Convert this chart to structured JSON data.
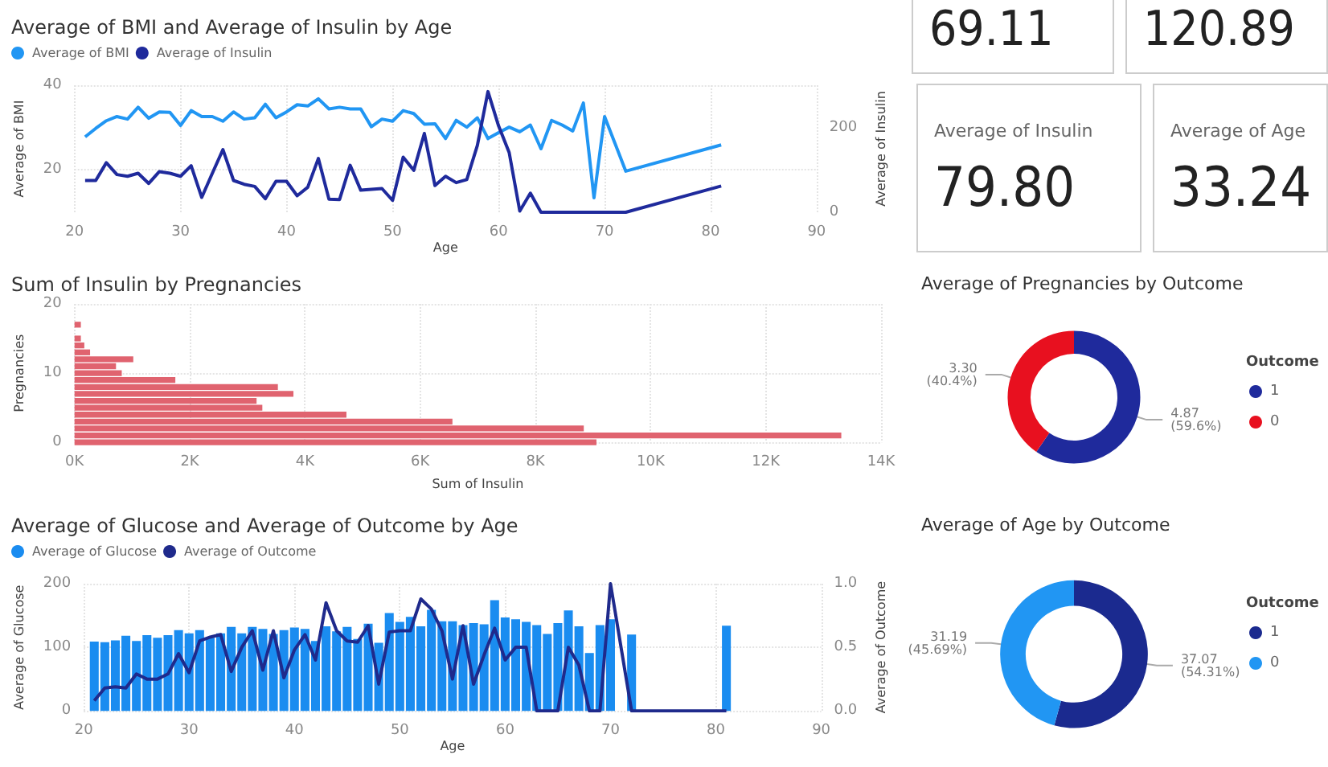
{
  "chart_data": [
    {
      "type": "line",
      "title": "Average of BMI and Average of Insulin by Age",
      "xlabel": "Age",
      "ylabel": "Average of BMI",
      "y2label": "Average of Insulin",
      "xlim": [
        20,
        90
      ],
      "xticks": [
        20,
        30,
        40,
        50,
        60,
        70,
        80,
        90
      ],
      "ylim": [
        10,
        40
      ],
      "yticks": [
        20,
        40
      ],
      "y2lim": [
        0,
        300
      ],
      "y2ticks": [
        0,
        200
      ],
      "grid": true,
      "legend": "top left",
      "marker": "none",
      "line_style": "solid",
      "x": [
        21,
        22,
        23,
        24,
        25,
        26,
        27,
        28,
        29,
        30,
        31,
        32,
        33,
        34,
        35,
        36,
        37,
        38,
        39,
        40,
        41,
        42,
        43,
        44,
        45,
        46,
        47,
        48,
        49,
        50,
        51,
        52,
        53,
        54,
        55,
        56,
        57,
        58,
        59,
        60,
        61,
        62,
        63,
        64,
        65,
        66,
        67,
        68,
        69,
        70,
        72,
        81
      ],
      "series": [
        {
          "name": "Average of BMI",
          "color": "#2196f3",
          "values": [
            27.8,
            29.8,
            31.6,
            32.6,
            32,
            34.8,
            32.2,
            33.7,
            33.6,
            30.5,
            34,
            32.6,
            32.6,
            31.5,
            33.7,
            32,
            32.3,
            35.5,
            32.3,
            33.7,
            35.4,
            35.1,
            36.8,
            34.4,
            34.8,
            34.4,
            34.4,
            30.2,
            32,
            31.5,
            34,
            33.3,
            30.8,
            30.9,
            27.4,
            31.7,
            30.1,
            32.3,
            27.4,
            28.8,
            30.1,
            29,
            30.6,
            25,
            31.7,
            30.6,
            29.2,
            35.8,
            13.4,
            32.6,
            19.7,
            25.9
          ]
        },
        {
          "name": "Average of Insulin",
          "color": "#1f2a9c",
          "axis": "y2",
          "values": [
            75,
            75,
            117,
            89,
            85,
            92,
            68,
            96,
            92,
            85,
            110,
            35,
            92,
            148,
            75,
            66,
            61,
            32,
            73,
            73,
            39,
            59,
            127,
            31,
            30,
            111,
            52,
            54,
            56,
            28,
            130,
            99,
            186,
            63,
            85,
            70,
            77,
            158,
            285,
            204,
            141,
            3,
            45,
            0,
            0,
            0,
            0,
            0,
            0,
            0,
            0,
            62
          ]
        }
      ]
    },
    {
      "type": "other",
      "annotations": [
        "69.11",
        "120.89",
        "Average of Insulin",
        "79.80",
        "Average of Age",
        "33.24"
      ]
    },
    {
      "type": "bar",
      "orientation": "horizontal",
      "title": "Sum of Insulin by Pregnancies",
      "xlabel": "Sum of Insulin",
      "ylabel": "Pregnancies",
      "color": "#e0636f",
      "grid": true,
      "x": [
        0,
        1,
        2,
        3,
        4,
        5,
        6,
        7,
        8,
        9,
        10,
        11,
        12,
        13,
        14,
        15,
        17
      ],
      "values": [
        9060,
        13310,
        8840,
        6560,
        4720,
        3260,
        3160,
        3800,
        3530,
        1750,
        820,
        720,
        1020,
        270,
        170,
        110,
        110
      ],
      "xlim": [
        0,
        14000
      ],
      "xticks": [
        {
          "value": 0,
          "label": "0K"
        },
        {
          "value": 2000,
          "label": "2K"
        },
        {
          "value": 4000,
          "label": "4K"
        },
        {
          "value": 6000,
          "label": "6K"
        },
        {
          "value": 8000,
          "label": "8K"
        },
        {
          "value": 10000,
          "label": "10K"
        },
        {
          "value": 12000,
          "label": "12K"
        },
        {
          "value": 14000,
          "label": "14K"
        }
      ],
      "ylim": [
        0,
        20
      ],
      "yticks": [
        0,
        10,
        20
      ]
    },
    {
      "type": "donut",
      "title": "Average of Pregnancies by Outcome",
      "legend_title": "Outcome",
      "legend": "right",
      "categories": [
        "1",
        "0"
      ],
      "values": [
        4.87,
        3.3
      ],
      "colors": [
        "#1f2a9c",
        "#e8101f"
      ],
      "value_labels": [
        "4.87 (59.6%)",
        "3.30 (40.4%)"
      ]
    },
    {
      "type": "bar",
      "title": "Average of Glucose and Average of Outcome by Age",
      "xlabel": "Age",
      "ylabel": "Average of Glucose",
      "y2label": "Average of Outcome",
      "xlim": [
        20,
        90
      ],
      "xticks": [
        20,
        30,
        40,
        50,
        60,
        70,
        80,
        90
      ],
      "ylim": [
        0,
        200
      ],
      "yticks": [
        0,
        100,
        200
      ],
      "y2lim": [
        0,
        1
      ],
      "y2ticks": [
        {
          "value": 0,
          "label": "0.0"
        },
        {
          "value": 0.5,
          "label": "0.5"
        },
        {
          "value": 1,
          "label": "1.0"
        }
      ],
      "grid": true,
      "legend": "top left",
      "marker": "none",
      "line_style": "solid",
      "x": [
        21,
        22,
        23,
        24,
        25,
        26,
        27,
        28,
        29,
        30,
        31,
        32,
        33,
        34,
        35,
        36,
        37,
        38,
        39,
        40,
        41,
        42,
        43,
        44,
        45,
        46,
        47,
        48,
        49,
        50,
        51,
        52,
        53,
        54,
        55,
        56,
        57,
        58,
        59,
        60,
        61,
        62,
        63,
        64,
        65,
        66,
        67,
        68,
        69,
        70,
        72,
        81
      ],
      "series": [
        {
          "name": "Average of Glucose",
          "color": "#1a8cf0",
          "values": [
            109,
            108,
            111,
            118,
            110,
            119,
            115,
            119,
            127,
            122,
            127,
            115,
            122,
            132,
            122,
            132,
            129,
            121,
            127,
            131,
            129,
            110,
            133,
            125,
            132,
            113,
            137,
            107,
            154,
            140,
            148,
            133,
            159,
            141,
            141,
            135,
            138,
            136,
            174,
            147,
            144,
            140,
            135,
            121,
            138,
            158,
            133,
            91,
            135,
            144,
            120,
            134
          ]
        },
        {
          "name": "Average of Outcome",
          "type": "line",
          "color": "#1f2a8c",
          "axis": "y2",
          "values": [
            0.08,
            0.18,
            0.19,
            0.18,
            0.29,
            0.25,
            0.25,
            0.29,
            0.45,
            0.3,
            0.55,
            0.58,
            0.6,
            0.31,
            0.5,
            0.63,
            0.32,
            0.63,
            0.26,
            0.48,
            0.6,
            0.4,
            0.85,
            0.63,
            0.55,
            0.54,
            0.67,
            0.21,
            0.62,
            0.63,
            0.63,
            0.88,
            0.8,
            0.63,
            0.25,
            0.67,
            0.21,
            0.44,
            0.65,
            0.4,
            0.5,
            0.5,
            0,
            0,
            0,
            0.5,
            0.36,
            0,
            0,
            1,
            0,
            0
          ]
        }
      ]
    },
    {
      "type": "donut",
      "title": "Average of Age by Outcome",
      "legend_title": "Outcome",
      "legend": "right",
      "categories": [
        "1",
        "0"
      ],
      "values": [
        37.07,
        31.19
      ],
      "colors": [
        "#1b2a8f",
        "#2196f3"
      ],
      "value_labels": [
        "37.07 (54.31%)",
        "31.19 (45.69%)"
      ]
    }
  ]
}
